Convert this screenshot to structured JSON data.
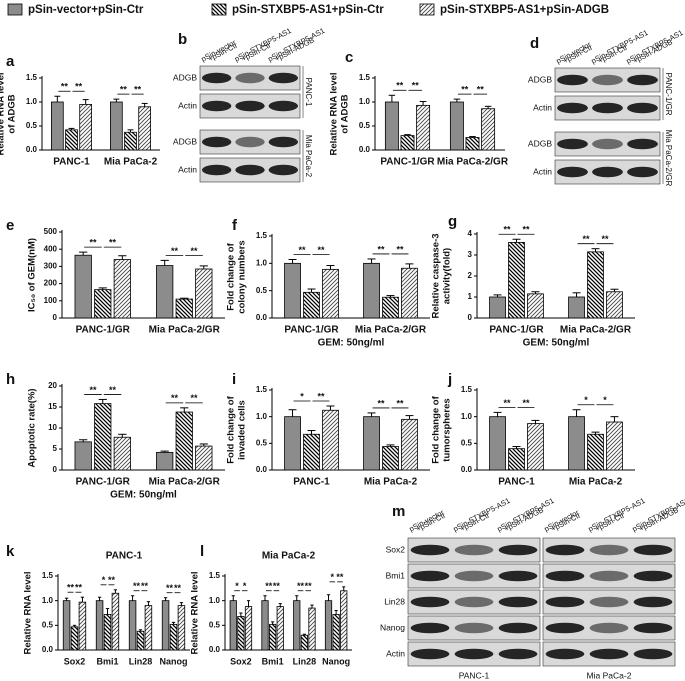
{
  "chart_data": [
    {
      "type": "bar",
      "letter": "a",
      "y_label": [
        "Relative RNA level",
        "of ADGB"
      ],
      "categories": [
        "PANC-1",
        "Mia PaCa-2"
      ],
      "ylim": [
        0,
        1.5
      ],
      "yticks": [
        {
          "value": 0,
          "label": "0.0"
        },
        0.5,
        {
          "value": 1,
          "label": "1.0"
        },
        1.5
      ],
      "series": [
        {
          "name": "pSin-vector+pSin-Ctr",
          "color": "#8c8c8c",
          "pattern": "none",
          "values": [
            1.0,
            1.0
          ],
          "errors": [
            0.12,
            0.06
          ]
        },
        {
          "name": "pSin-STXBP5-AS1+pSin-Ctr",
          "color": "#ffffff",
          "pattern": "backslash",
          "values": [
            0.42,
            0.37
          ],
          "errors": [
            0.03,
            0.05
          ]
        },
        {
          "name": "pSin-STXBP5-AS1+pSin-ADGB",
          "color": "#ffffff",
          "pattern": "slash",
          "values": [
            0.95,
            0.9
          ],
          "errors": [
            0.1,
            0.07
          ]
        }
      ],
      "significance": [
        [
          "**",
          "**"
        ],
        [
          "**",
          "**"
        ]
      ]
    },
    {
      "type": "bar",
      "letter": "c",
      "y_label": [
        "Relative RNA level",
        "of ADGB"
      ],
      "categories": [
        "PANC-1/GR",
        "Mia PaCa-2/GR"
      ],
      "ylim": [
        0,
        1.5
      ],
      "yticks": [
        {
          "value": 0,
          "label": "0.0"
        },
        0.5,
        {
          "value": 1,
          "label": "1.0"
        },
        1.5
      ],
      "series": [
        {
          "color": "#8c8c8c",
          "pattern": "none",
          "values": [
            1.0,
            1.0
          ],
          "errors": [
            0.14,
            0.06
          ]
        },
        {
          "color": "#ffffff",
          "pattern": "backslash",
          "values": [
            0.3,
            0.26
          ],
          "errors": [
            0.02,
            0.02
          ]
        },
        {
          "color": "#ffffff",
          "pattern": "slash",
          "values": [
            0.93,
            0.86
          ],
          "errors": [
            0.08,
            0.05
          ]
        }
      ],
      "significance": [
        [
          "**",
          "**"
        ],
        [
          "**",
          "**"
        ]
      ]
    },
    {
      "type": "bar",
      "letter": "e",
      "y_label": [
        "IC₅₀ of GEM(nM)"
      ],
      "categories": [
        "PANC-1/GR",
        "Mia PaCa-2/GR"
      ],
      "ylim": [
        0,
        500
      ],
      "yticks": [
        0,
        100,
        200,
        300,
        400,
        500
      ],
      "series": [
        {
          "color": "#8c8c8c",
          "pattern": "none",
          "values": [
            365,
            305
          ],
          "errors": [
            18,
            30
          ]
        },
        {
          "color": "#ffffff",
          "pattern": "backslash",
          "values": [
            165,
            110
          ],
          "errors": [
            10,
            5
          ]
        },
        {
          "color": "#ffffff",
          "pattern": "slash",
          "values": [
            340,
            285
          ],
          "errors": [
            22,
            18
          ]
        }
      ],
      "significance": [
        [
          "**",
          "**"
        ],
        [
          "**",
          "**"
        ]
      ]
    },
    {
      "type": "bar",
      "letter": "f",
      "y_label": [
        "Fold change of",
        "colony numbers"
      ],
      "x_label": "GEM: 50ng/ml",
      "categories": [
        "PANC-1/GR",
        "Mia PaCa-2/GR"
      ],
      "ylim": [
        0,
        1.5
      ],
      "yticks": [
        {
          "value": 0,
          "label": "0.0"
        },
        0.5,
        {
          "value": 1,
          "label": "1.0"
        },
        1.5
      ],
      "series": [
        {
          "color": "#8c8c8c",
          "pattern": "none",
          "values": [
            1.0,
            1.0
          ],
          "errors": [
            0.07,
            0.08
          ]
        },
        {
          "color": "#ffffff",
          "pattern": "backslash",
          "values": [
            0.47,
            0.38
          ],
          "errors": [
            0.06,
            0.03
          ]
        },
        {
          "color": "#ffffff",
          "pattern": "slash",
          "values": [
            0.89,
            0.91
          ],
          "errors": [
            0.07,
            0.08
          ]
        }
      ],
      "significance": [
        [
          "**",
          "**"
        ],
        [
          "**",
          "**"
        ]
      ]
    },
    {
      "type": "bar",
      "letter": "g",
      "y_label": [
        "Relative caspase-3",
        "activity(fold)"
      ],
      "x_label": "GEM: 50ng/ml",
      "categories": [
        "PANC-1/GR",
        "Mia PaCa-2/GR"
      ],
      "ylim": [
        0,
        4
      ],
      "yticks": [
        0,
        1,
        2,
        3,
        4
      ],
      "series": [
        {
          "color": "#8c8c8c",
          "pattern": "none",
          "values": [
            1.0,
            1.0
          ],
          "errors": [
            0.1,
            0.2
          ]
        },
        {
          "color": "#ffffff",
          "pattern": "backslash",
          "values": [
            3.6,
            3.15
          ],
          "errors": [
            0.15,
            0.15
          ]
        },
        {
          "color": "#ffffff",
          "pattern": "slash",
          "values": [
            1.15,
            1.25
          ],
          "errors": [
            0.1,
            0.12
          ]
        }
      ],
      "significance": [
        [
          "**",
          "**"
        ],
        [
          "**",
          "**"
        ]
      ]
    },
    {
      "type": "bar",
      "letter": "h",
      "y_label": [
        "Apoptotic rate(%)"
      ],
      "x_label": "GEM: 50ng/ml",
      "categories": [
        "PANC-1/GR",
        "Mia PaCa-2/GR"
      ],
      "ylim": [
        0,
        20
      ],
      "yticks": [
        0,
        5,
        10,
        15,
        20
      ],
      "series": [
        {
          "color": "#8c8c8c",
          "pattern": "none",
          "values": [
            6.7,
            4.2
          ],
          "errors": [
            0.5,
            0.3
          ]
        },
        {
          "color": "#ffffff",
          "pattern": "backslash",
          "values": [
            15.8,
            13.8
          ],
          "errors": [
            1.0,
            1.0
          ]
        },
        {
          "color": "#ffffff",
          "pattern": "slash",
          "values": [
            7.8,
            5.7
          ],
          "errors": [
            0.7,
            0.5
          ]
        }
      ],
      "significance": [
        [
          "**",
          "**"
        ],
        [
          "**",
          "**"
        ]
      ]
    },
    {
      "type": "bar",
      "letter": "i",
      "y_label": [
        "Fold change of",
        "invaded cells"
      ],
      "categories": [
        "PANC-1",
        "Mia PaCa-2"
      ],
      "ylim": [
        0,
        1.5
      ],
      "yticks": [
        {
          "value": 0,
          "label": "0.0"
        },
        0.5,
        {
          "value": 1,
          "label": "1.0"
        },
        1.5
      ],
      "series": [
        {
          "color": "#8c8c8c",
          "pattern": "none",
          "values": [
            1.0,
            1.0
          ],
          "errors": [
            0.13,
            0.07
          ]
        },
        {
          "color": "#ffffff",
          "pattern": "backslash",
          "values": [
            0.67,
            0.44
          ],
          "errors": [
            0.07,
            0.03
          ]
        },
        {
          "color": "#ffffff",
          "pattern": "slash",
          "values": [
            1.12,
            0.95
          ],
          "errors": [
            0.08,
            0.07
          ]
        }
      ],
      "significance": [
        [
          "*",
          "**"
        ],
        [
          "**",
          "**"
        ]
      ]
    },
    {
      "type": "bar",
      "letter": "j",
      "y_label": [
        "Fold change of",
        "tumorspheres"
      ],
      "categories": [
        "PANC-1",
        "Mia PaCa-2"
      ],
      "ylim": [
        0,
        1.5
      ],
      "yticks": [
        {
          "value": 0,
          "label": "0.0"
        },
        0.5,
        {
          "value": 1,
          "label": "1.0"
        },
        1.5
      ],
      "series": [
        {
          "color": "#8c8c8c",
          "pattern": "none",
          "values": [
            1.0,
            1.0
          ],
          "errors": [
            0.08,
            0.13
          ]
        },
        {
          "color": "#ffffff",
          "pattern": "backslash",
          "values": [
            0.4,
            0.67
          ],
          "errors": [
            0.04,
            0.04
          ]
        },
        {
          "color": "#ffffff",
          "pattern": "slash",
          "values": [
            0.87,
            0.9
          ],
          "errors": [
            0.06,
            0.1
          ]
        }
      ],
      "significance": [
        [
          "**",
          "**"
        ],
        [
          "*",
          "*"
        ]
      ]
    },
    {
      "type": "bar",
      "letter": "k",
      "title": "PANC-1",
      "y_label": [
        "Relative RNA level"
      ],
      "categories": [
        "Sox2",
        "Bmi1",
        "Lin28",
        "Nanog"
      ],
      "ylim": [
        0,
        1.5
      ],
      "yticks": [
        {
          "value": 0,
          "label": "0.0"
        },
        0.5,
        {
          "value": 1,
          "label": "1.0"
        },
        1.5
      ],
      "series": [
        {
          "color": "#8c8c8c",
          "pattern": "none",
          "values": [
            1.0,
            1.0,
            1.0,
            1.0
          ],
          "errors": [
            0.05,
            0.07,
            0.1,
            0.06
          ]
        },
        {
          "color": "#ffffff",
          "pattern": "backslash",
          "values": [
            0.47,
            0.72,
            0.38,
            0.52
          ],
          "errors": [
            0.03,
            0.12,
            0.03,
            0.04
          ]
        },
        {
          "color": "#ffffff",
          "pattern": "slash",
          "values": [
            0.97,
            1.15,
            0.9,
            0.9
          ],
          "errors": [
            0.1,
            0.07,
            0.08,
            0.06
          ]
        }
      ],
      "significance": [
        [
          "**",
          "**"
        ],
        [
          "*",
          "**"
        ],
        [
          "**",
          "**"
        ],
        [
          "**",
          "**"
        ]
      ]
    },
    {
      "type": "bar",
      "letter": "l",
      "title": "Mia PaCa-2",
      "y_label": [
        "Relative RNA level"
      ],
      "categories": [
        "Sox2",
        "Bmi1",
        "Lin28",
        "Nanog"
      ],
      "ylim": [
        0,
        1.5
      ],
      "yticks": [
        {
          "value": 0,
          "label": "0.0"
        },
        0.5,
        {
          "value": 1,
          "label": "1.0"
        },
        1.5
      ],
      "series": [
        {
          "color": "#8c8c8c",
          "pattern": "none",
          "values": [
            1.0,
            1.0,
            1.0,
            1.0
          ],
          "errors": [
            0.1,
            0.1,
            0.1,
            0.12
          ]
        },
        {
          "color": "#ffffff",
          "pattern": "backslash",
          "values": [
            0.68,
            0.52,
            0.3,
            0.72
          ],
          "errors": [
            0.07,
            0.05,
            0.02,
            0.08
          ]
        },
        {
          "color": "#ffffff",
          "pattern": "slash",
          "values": [
            0.88,
            0.88,
            0.85,
            1.2
          ],
          "errors": [
            0.12,
            0.06,
            0.06,
            0.08
          ]
        }
      ],
      "significance": [
        [
          "*",
          "*"
        ],
        [
          "**",
          "**"
        ],
        [
          "**",
          "**"
        ],
        [
          "*",
          "**"
        ]
      ]
    }
  ],
  "blots": [
    {
      "letter": "b",
      "lanes": [
        [
          "pSin-vector",
          "+pSin-Ctr"
        ],
        [
          "pSin-STXBP5-AS1",
          "+pSin-Ctr"
        ],
        [
          "pSin-STXBP5-AS1",
          "+pSin-ADGB"
        ]
      ],
      "groups": [
        {
          "label": "PANC-1",
          "rows": [
            "ADGB",
            "Actin"
          ]
        },
        {
          "label": "Mia PaCa-2",
          "rows": [
            "ADGB",
            "Actin"
          ]
        }
      ]
    },
    {
      "letter": "d",
      "lanes": [
        [
          "pSin-vector",
          "+pSin-Ctr"
        ],
        [
          "pSin-STXBP5-AS1",
          "+pSin-Ctr"
        ],
        [
          "pSin-STXBP5-AS1",
          "+pSin-ADGB"
        ]
      ],
      "groups": [
        {
          "label": "PANC-1/GR",
          "rows": [
            "ADGB",
            "Actin"
          ]
        },
        {
          "label": "Mia PaCa-2/GR",
          "rows": [
            "ADGB",
            "Actin"
          ]
        }
      ]
    },
    {
      "letter": "m",
      "rows": [
        "Sox2",
        "Bmi1",
        "Lin28",
        "Nanog",
        "Actin"
      ],
      "sets": [
        {
          "label": "PANC-1",
          "lanes": [
            [
              "pSin-vector",
              "+pSin-Ctr"
            ],
            [
              "pSin-STXBP5-AS1",
              "+pSin-Ctr"
            ],
            [
              "pSin-STXBP5-AS1",
              "+pSin-ADGB"
            ]
          ]
        },
        {
          "label": "Mia PaCa-2",
          "lanes": [
            [
              "pSin-vector",
              "+pSin-Ctr"
            ],
            [
              "pSin-STXBP5-AS1",
              "+pSin-Ctr"
            ],
            [
              "pSin-STXBP5-AS1",
              "+pSin-ADGB"
            ]
          ]
        }
      ]
    }
  ]
}
